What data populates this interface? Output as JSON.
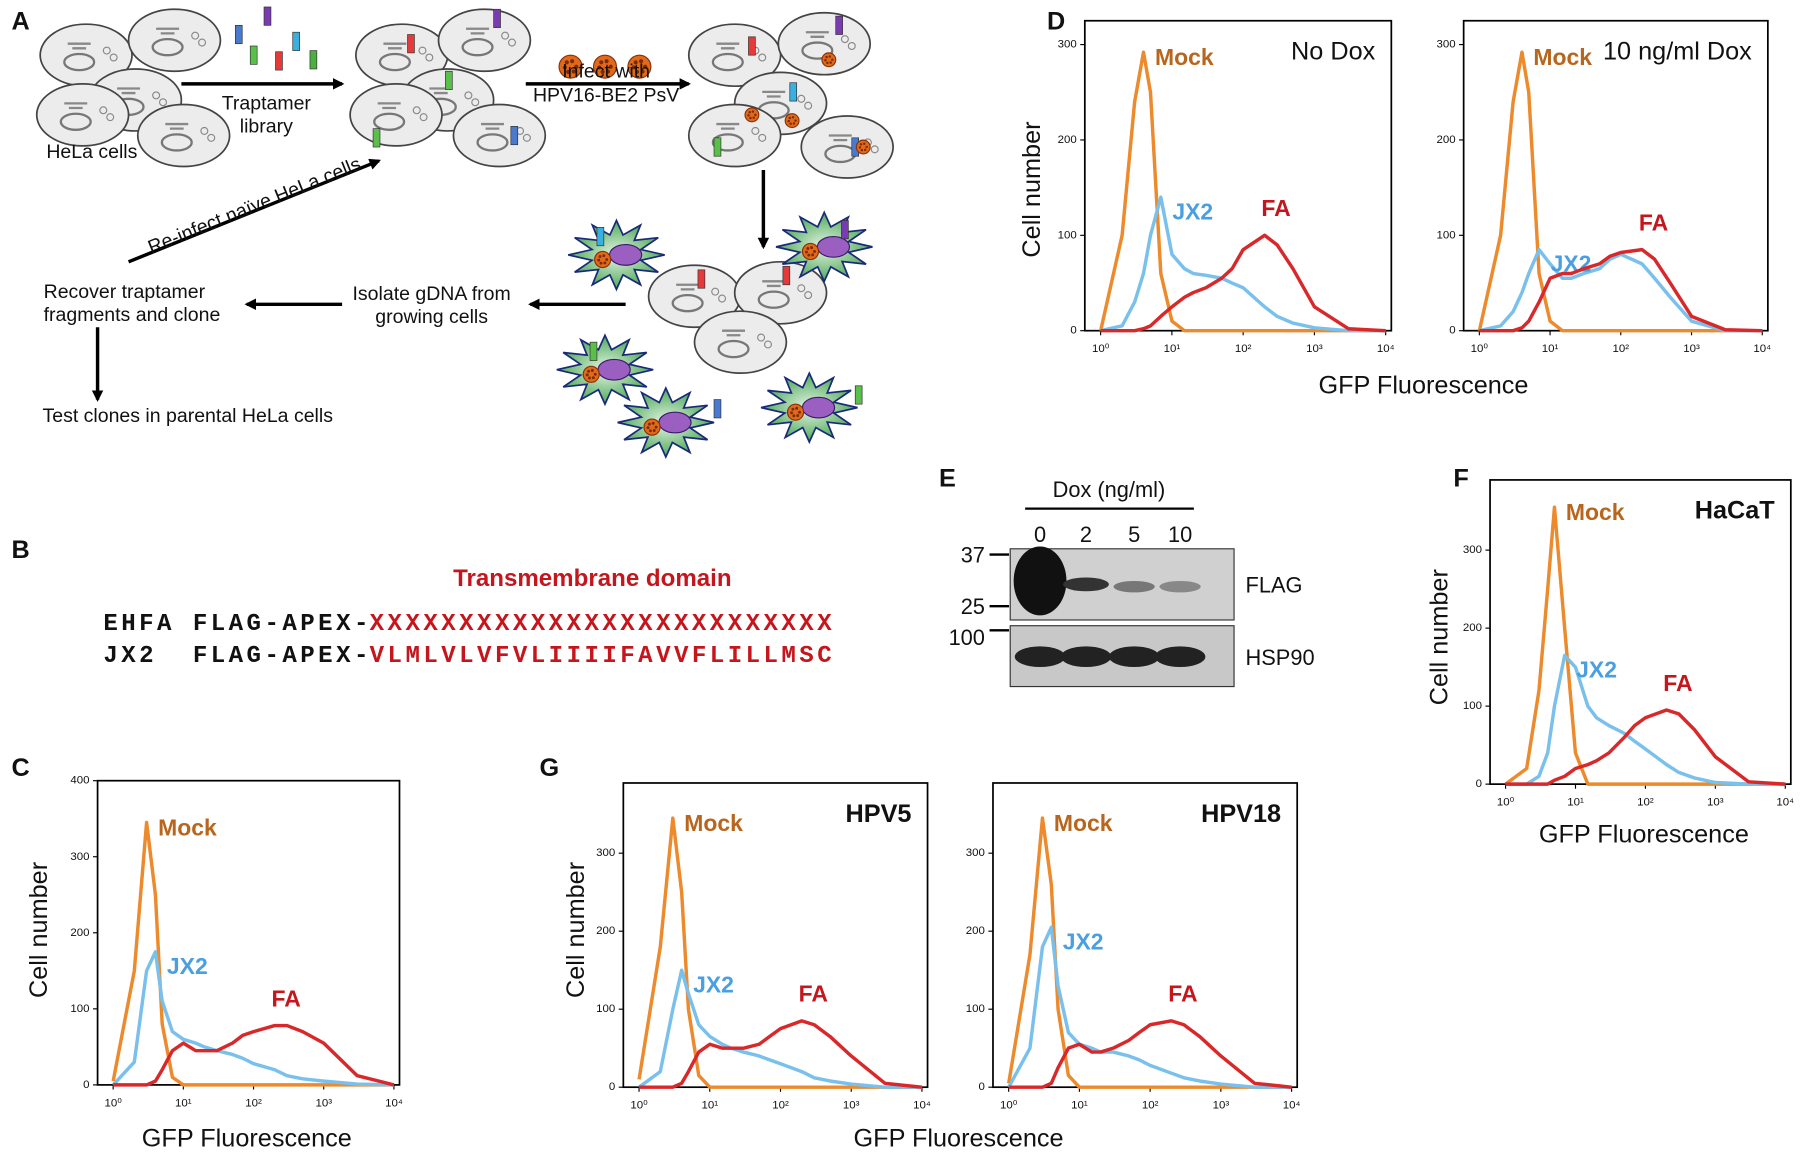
{
  "panel_labels": [
    "A",
    "B",
    "C",
    "D",
    "E",
    "F",
    "G"
  ],
  "diagram": {
    "hela": "HeLa cells",
    "library": [
      "Traptamer",
      "library"
    ],
    "infect": [
      "Infect with",
      "HPV16-BE2 PsV"
    ],
    "reinfect": "Re-infect naïve HeLa cells",
    "recover": [
      "Recover traptamer",
      "fragments and clone"
    ],
    "isolate": [
      "Isolate gDNA from",
      "growing cells"
    ],
    "test": "Test clones in parental HeLa cells"
  },
  "sequences": {
    "title": "Transmembrane domain",
    "rows": [
      [
        "EHFA",
        "FLAG-APEX-",
        "XXXXXXXXXXXXXXXXXXXXXXXXXX"
      ],
      [
        "JX2",
        "FLAG-APEX-",
        "VLMLVLVFVLIIIIFAVVFLILLMSC"
      ]
    ]
  },
  "blot": {
    "title": "Dox (ng/ml)",
    "lanes": [
      "0",
      "2",
      "5",
      "10"
    ],
    "markers": [
      "37",
      "25",
      "100"
    ],
    "rows": [
      "FLAG",
      "HSP90"
    ]
  },
  "chart_data": [
    {
      "type": "line",
      "xscale": "log",
      "xlim": [
        0.6,
        12000
      ],
      "ylim": [
        0,
        400
      ],
      "ylabel": "Cell number",
      "xlabel": "GFP Fluorescence",
      "xticks": [
        {
          "value": 1,
          "label": "10⁰"
        },
        {
          "value": 10,
          "label": "10¹"
        },
        {
          "value": 100,
          "label": "10²"
        },
        {
          "value": 1000,
          "label": "10³"
        },
        {
          "value": 10000,
          "label": "10⁴"
        }
      ],
      "yticks": [
        0,
        100,
        200,
        300,
        400
      ],
      "x": [
        1,
        2,
        3,
        4,
        5,
        7,
        10,
        15,
        20,
        30,
        50,
        70,
        100,
        200,
        300,
        500,
        1000,
        3000,
        10000
      ],
      "series": [
        {
          "name": "Mock",
          "color": "#ec8a2c",
          "label_color": "#b8661e",
          "values": [
            5,
            150,
            345,
            250,
            80,
            10,
            0,
            0,
            0,
            0,
            0,
            0,
            0,
            0,
            0,
            0,
            0,
            0,
            0
          ]
        },
        {
          "name": "JX2",
          "color": "#79c0ec",
          "label_color": "#4a9fe0",
          "values": [
            0,
            30,
            150,
            175,
            110,
            70,
            60,
            55,
            50,
            45,
            40,
            35,
            28,
            20,
            12,
            8,
            5,
            1,
            0
          ]
        },
        {
          "name": "FA",
          "color": "#d9282a",
          "label_color": "#c4161c",
          "values": [
            0,
            0,
            0,
            5,
            20,
            45,
            55,
            45,
            45,
            45,
            55,
            65,
            70,
            78,
            78,
            70,
            55,
            12,
            0
          ]
        }
      ]
    },
    {
      "type": "line",
      "xscale": "log",
      "xlim": [
        0.6,
        12000
      ],
      "ylim": [
        0,
        325
      ],
      "ylabel": "Cell number",
      "xlabel": "GFP Fluorescence",
      "annotation": "No Dox",
      "xticks": [
        {
          "value": 1,
          "label": "10⁰"
        },
        {
          "value": 10,
          "label": "10¹"
        },
        {
          "value": 100,
          "label": "10²"
        },
        {
          "value": 1000,
          "label": "10³"
        },
        {
          "value": 10000,
          "label": "10⁴"
        }
      ],
      "yticks": [
        0,
        100,
        200,
        300
      ],
      "x": [
        1,
        2,
        3,
        4,
        5,
        7,
        10,
        15,
        20,
        30,
        50,
        70,
        100,
        200,
        300,
        500,
        1000,
        3000,
        10000
      ],
      "series": [
        {
          "name": "Mock",
          "color": "#ec8a2c",
          "label_color": "#b8661e",
          "values": [
            0,
            100,
            240,
            292,
            250,
            60,
            10,
            0,
            0,
            0,
            0,
            0,
            0,
            0,
            0,
            0,
            0,
            0,
            0
          ]
        },
        {
          "name": "JX2",
          "color": "#79c0ec",
          "label_color": "#4a9fe0",
          "values": [
            0,
            5,
            30,
            60,
            100,
            140,
            80,
            65,
            60,
            58,
            55,
            50,
            45,
            25,
            15,
            8,
            3,
            0,
            0
          ]
        },
        {
          "name": "FA",
          "color": "#d9282a",
          "label_color": "#c4161c",
          "values": [
            0,
            0,
            0,
            2,
            5,
            15,
            25,
            35,
            40,
            45,
            55,
            65,
            85,
            100,
            90,
            65,
            25,
            2,
            0
          ]
        }
      ]
    },
    {
      "type": "line",
      "xscale": "log",
      "xlim": [
        0.6,
        12000
      ],
      "ylim": [
        0,
        325
      ],
      "annotation": "10 ng/ml Dox",
      "xticks": [
        {
          "value": 1,
          "label": "10⁰"
        },
        {
          "value": 10,
          "label": "10¹"
        },
        {
          "value": 100,
          "label": "10²"
        },
        {
          "value": 1000,
          "label": "10³"
        },
        {
          "value": 10000,
          "label": "10⁴"
        }
      ],
      "yticks": [
        0,
        100,
        200,
        300
      ],
      "x": [
        1,
        2,
        3,
        4,
        5,
        7,
        10,
        15,
        20,
        30,
        50,
        70,
        100,
        200,
        300,
        500,
        1000,
        3000,
        10000
      ],
      "series": [
        {
          "name": "Mock",
          "color": "#ec8a2c",
          "label_color": "#b8661e",
          "values": [
            0,
            100,
            240,
            292,
            250,
            60,
            10,
            0,
            0,
            0,
            0,
            0,
            0,
            0,
            0,
            0,
            0,
            0,
            0
          ]
        },
        {
          "name": "JX2",
          "color": "#79c0ec",
          "label_color": "#4a9fe0",
          "values": [
            0,
            5,
            20,
            40,
            60,
            85,
            70,
            55,
            55,
            60,
            65,
            75,
            80,
            70,
            55,
            35,
            10,
            0,
            0
          ]
        },
        {
          "name": "FA",
          "color": "#d9282a",
          "label_color": "#c4161c",
          "values": [
            0,
            0,
            0,
            3,
            10,
            30,
            55,
            60,
            60,
            65,
            70,
            78,
            82,
            85,
            75,
            50,
            15,
            1,
            0
          ]
        }
      ]
    },
    {
      "type": "line",
      "xscale": "log",
      "xlim": [
        0.6,
        12000
      ],
      "ylim": [
        0,
        390
      ],
      "ylabel": "Cell number",
      "xlabel": "GFP Fluorescence",
      "annotation": "HaCaT",
      "xticks": [
        {
          "value": 1,
          "label": "10⁰"
        },
        {
          "value": 10,
          "label": "10¹"
        },
        {
          "value": 100,
          "label": "10²"
        },
        {
          "value": 1000,
          "label": "10³"
        },
        {
          "value": 10000,
          "label": "10⁴"
        }
      ],
      "yticks": [
        0,
        100,
        200,
        300
      ],
      "x": [
        1,
        2,
        3,
        4,
        5,
        7,
        10,
        15,
        20,
        30,
        50,
        70,
        100,
        200,
        300,
        500,
        1000,
        3000,
        10000
      ],
      "series": [
        {
          "name": "Mock",
          "color": "#ec8a2c",
          "label_color": "#b8661e",
          "values": [
            0,
            20,
            120,
            250,
            355,
            200,
            40,
            0,
            0,
            0,
            0,
            0,
            0,
            0,
            0,
            0,
            0,
            0,
            0
          ]
        },
        {
          "name": "JX2",
          "color": "#79c0ec",
          "label_color": "#4a9fe0",
          "values": [
            0,
            0,
            10,
            40,
            100,
            165,
            150,
            100,
            85,
            75,
            65,
            55,
            45,
            25,
            15,
            8,
            2,
            0,
            0
          ]
        },
        {
          "name": "FA",
          "color": "#d9282a",
          "label_color": "#c4161c",
          "values": [
            0,
            0,
            0,
            0,
            5,
            10,
            20,
            25,
            30,
            40,
            60,
            75,
            85,
            95,
            90,
            70,
            35,
            3,
            0
          ]
        }
      ]
    },
    {
      "type": "line",
      "xscale": "log",
      "xlim": [
        0.6,
        12000
      ],
      "ylim": [
        0,
        390
      ],
      "ylabel": "Cell number",
      "xlabel": "GFP Fluorescence",
      "annotation": "HPV5",
      "xticks": [
        {
          "value": 1,
          "label": "10⁰"
        },
        {
          "value": 10,
          "label": "10¹"
        },
        {
          "value": 100,
          "label": "10²"
        },
        {
          "value": 1000,
          "label": "10³"
        },
        {
          "value": 10000,
          "label": "10⁴"
        }
      ],
      "yticks": [
        0,
        100,
        200,
        300
      ],
      "x": [
        1,
        2,
        3,
        4,
        5,
        7,
        10,
        15,
        20,
        30,
        50,
        70,
        100,
        200,
        300,
        500,
        1000,
        3000,
        10000
      ],
      "series": [
        {
          "name": "Mock",
          "color": "#ec8a2c",
          "label_color": "#b8661e",
          "values": [
            10,
            180,
            345,
            250,
            100,
            15,
            0,
            0,
            0,
            0,
            0,
            0,
            0,
            0,
            0,
            0,
            0,
            0,
            0
          ]
        },
        {
          "name": "JX2",
          "color": "#79c0ec",
          "label_color": "#4a9fe0",
          "values": [
            0,
            20,
            100,
            150,
            120,
            80,
            65,
            55,
            50,
            45,
            40,
            35,
            30,
            20,
            12,
            8,
            4,
            0,
            0
          ]
        },
        {
          "name": "FA",
          "color": "#d9282a",
          "label_color": "#c4161c",
          "values": [
            0,
            0,
            0,
            5,
            20,
            45,
            55,
            50,
            50,
            50,
            55,
            65,
            75,
            85,
            80,
            65,
            40,
            5,
            0
          ]
        }
      ]
    },
    {
      "type": "line",
      "xscale": "log",
      "xlim": [
        0.6,
        12000
      ],
      "ylim": [
        0,
        390
      ],
      "annotation": "HPV18",
      "xticks": [
        {
          "value": 1,
          "label": "10⁰"
        },
        {
          "value": 10,
          "label": "10¹"
        },
        {
          "value": 100,
          "label": "10²"
        },
        {
          "value": 1000,
          "label": "10³"
        },
        {
          "value": 10000,
          "label": "10⁴"
        }
      ],
      "yticks": [
        0,
        100,
        200,
        300
      ],
      "x": [
        1,
        2,
        3,
        4,
        5,
        7,
        10,
        15,
        20,
        30,
        50,
        70,
        100,
        200,
        300,
        500,
        1000,
        3000,
        10000
      ],
      "series": [
        {
          "name": "Mock",
          "color": "#ec8a2c",
          "label_color": "#b8661e",
          "values": [
            5,
            170,
            345,
            260,
            100,
            15,
            0,
            0,
            0,
            0,
            0,
            0,
            0,
            0,
            0,
            0,
            0,
            0,
            0
          ]
        },
        {
          "name": "JX2",
          "color": "#79c0ec",
          "label_color": "#4a9fe0",
          "values": [
            0,
            50,
            180,
            205,
            130,
            70,
            55,
            50,
            45,
            45,
            40,
            35,
            28,
            18,
            12,
            8,
            4,
            0,
            0
          ]
        },
        {
          "name": "FA",
          "color": "#d9282a",
          "label_color": "#c4161c",
          "values": [
            0,
            0,
            0,
            5,
            25,
            50,
            55,
            45,
            45,
            50,
            60,
            70,
            80,
            85,
            80,
            65,
            40,
            5,
            0
          ]
        }
      ]
    }
  ]
}
